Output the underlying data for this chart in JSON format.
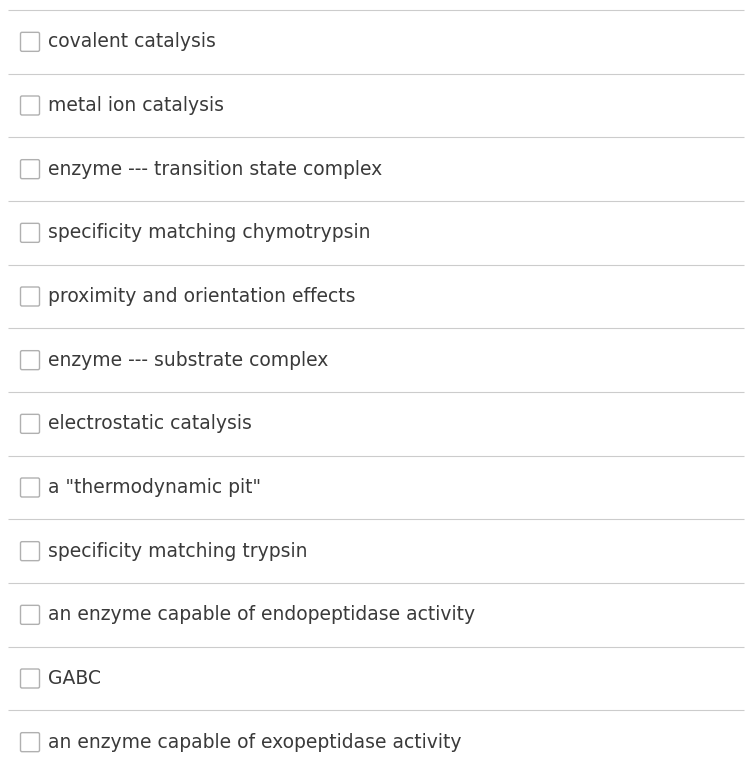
{
  "items": [
    "covalent catalysis",
    "metal ion catalysis",
    "enzyme --- transition state complex",
    "specificity matching chymotrypsin",
    "proximity and orientation effects",
    "enzyme --- substrate complex",
    "electrostatic catalysis",
    "a \"thermodynamic pit\"",
    "specificity matching trypsin",
    "an enzyme capable of endopeptidase activity",
    "GABC",
    "an enzyme capable of exopeptidase activity"
  ],
  "background_color": "#ffffff",
  "text_color": "#3a3a3a",
  "line_color": "#cccccc",
  "checkbox_edge_color": "#b0b0b0",
  "checkbox_fill_color": "#ffffff",
  "text_fontsize": 13.5,
  "fig_width": 7.52,
  "fig_height": 7.64,
  "dpi": 100
}
